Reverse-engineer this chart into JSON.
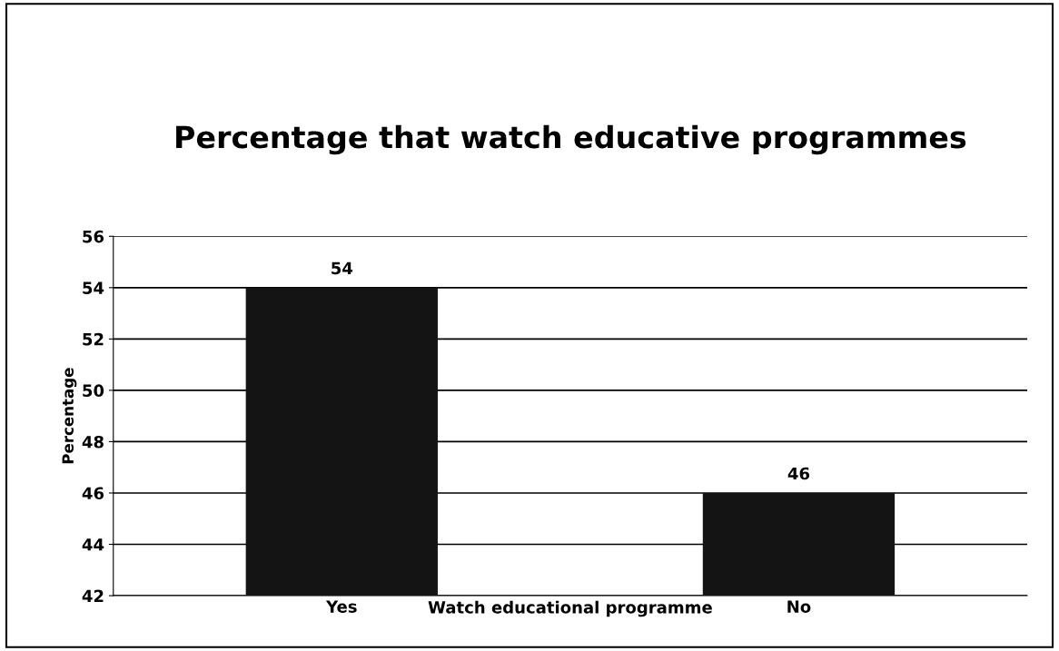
{
  "chart_data": {
    "type": "bar",
    "title": "Percentage that watch educative programmes",
    "xlabel": "Watch educational programme",
    "ylabel": "Percentage",
    "categories": [
      "Yes",
      "No"
    ],
    "values": [
      54,
      46
    ],
    "color": "#141414",
    "ylim": [
      42,
      56
    ],
    "yticks": [
      42,
      44,
      46,
      48,
      50,
      52,
      54,
      56
    ],
    "grid": "y",
    "data_labels": true
  }
}
